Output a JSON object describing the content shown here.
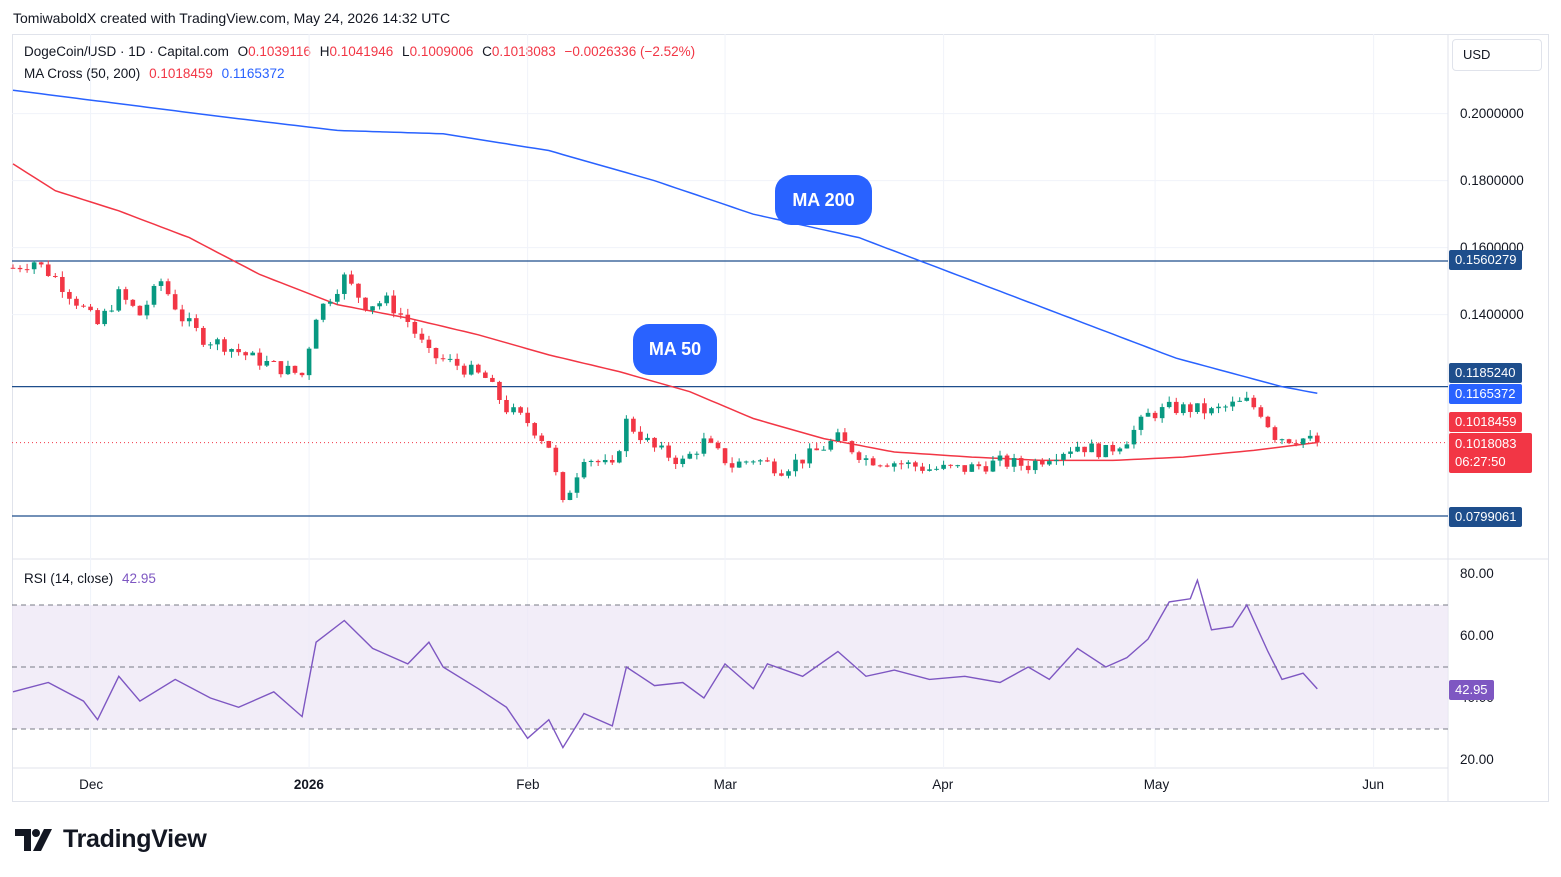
{
  "header": {
    "credit": "TomiwaboldX created with TradingView.com, May 24, 2026 14:32 UTC"
  },
  "legend": {
    "symbol": "DogeCoin/USD · 1D · Capital.com",
    "o_label": "O",
    "o": "0.1039116",
    "h_label": "H",
    "h": "0.1041946",
    "l_label": "L",
    "l": "0.1009006",
    "c_label": "C",
    "c": "0.1018083",
    "change": "−0.0026336 (−2.52%)",
    "ma_label": "MA Cross (50, 200)",
    "ma50": "0.1018459",
    "ma200": "0.1165372",
    "rsi_label": "RSI (14, close)",
    "rsi": "42.95"
  },
  "currency_button": "USD",
  "price_axis": [
    "0.2000000",
    "0.1800000",
    "0.1600000",
    "0.1400000"
  ],
  "badges": {
    "level_top": "0.1560279",
    "level_mid": "0.1185240",
    "ma200": "0.1165372",
    "ma50": "0.1018459",
    "last": "0.1018083",
    "countdown": "06:27:50",
    "level_low": "0.0799061",
    "rsi": "42.95"
  },
  "callouts": {
    "ma200": "MA 200",
    "ma50": "MA 50"
  },
  "rsi_axis": [
    "80.00",
    "60.00",
    "40.00",
    "20.00"
  ],
  "time_axis": [
    {
      "label": "Dec",
      "bold": false
    },
    {
      "label": "2026",
      "bold": true
    },
    {
      "label": "Feb",
      "bold": false
    },
    {
      "label": "Mar",
      "bold": false
    },
    {
      "label": "Apr",
      "bold": false
    },
    {
      "label": "May",
      "bold": false
    },
    {
      "label": "Jun",
      "bold": false
    }
  ],
  "brand": "TradingView",
  "colors": {
    "up": "#089981",
    "down": "#f23645",
    "ma50": "#f23645",
    "ma200": "#2962ff",
    "rsi": "#7e57c2",
    "level": "#1e4e8c",
    "rsi_band": "#ede7f6"
  },
  "chart_data": {
    "type": "candlestick",
    "title": "DogeCoin/USD · 1D · Capital.com",
    "ylim": [
      0.075,
      0.215
    ],
    "horizontal_levels": [
      0.1560279,
      0.118524,
      0.0799061
    ],
    "time_range": [
      "2025-11-20",
      "2026-05-24"
    ],
    "series": [
      {
        "name": "DogeCoin/USD",
        "anchor_closes": [
          [
            "2025-11-20",
            0.154
          ],
          [
            "2025-11-23",
            0.156
          ],
          [
            "2025-11-26",
            0.151
          ],
          [
            "2025-11-29",
            0.144
          ],
          [
            "2025-12-02",
            0.137
          ],
          [
            "2025-12-05",
            0.146
          ],
          [
            "2025-12-08",
            0.14
          ],
          [
            "2025-12-11",
            0.15
          ],
          [
            "2025-12-14",
            0.139
          ],
          [
            "2025-12-17",
            0.133
          ],
          [
            "2025-12-20",
            0.131
          ],
          [
            "2025-12-24",
            0.127
          ],
          [
            "2025-12-28",
            0.124
          ],
          [
            "2025-12-31",
            0.122
          ],
          [
            "2026-01-02",
            0.14
          ],
          [
            "2026-01-06",
            0.151
          ],
          [
            "2026-01-09",
            0.143
          ],
          [
            "2026-01-12",
            0.144
          ],
          [
            "2026-01-15",
            0.138
          ],
          [
            "2026-01-18",
            0.128
          ],
          [
            "2026-01-22",
            0.125
          ],
          [
            "2026-01-26",
            0.121
          ],
          [
            "2026-01-29",
            0.112
          ],
          [
            "2026-02-01",
            0.108
          ],
          [
            "2026-02-04",
            0.101
          ],
          [
            "2026-02-06",
            0.083
          ],
          [
            "2026-02-09",
            0.098
          ],
          [
            "2026-02-13",
            0.094
          ],
          [
            "2026-02-15",
            0.108
          ],
          [
            "2026-02-19",
            0.1
          ],
          [
            "2026-02-23",
            0.096
          ],
          [
            "2026-02-26",
            0.102
          ],
          [
            "2026-03-02",
            0.095
          ],
          [
            "2026-03-05",
            0.097
          ],
          [
            "2026-03-09",
            0.094
          ],
          [
            "2026-03-13",
            0.098
          ],
          [
            "2026-03-17",
            0.103
          ],
          [
            "2026-03-21",
            0.097
          ],
          [
            "2026-03-25",
            0.096
          ],
          [
            "2026-03-30",
            0.094
          ],
          [
            "2026-04-04",
            0.094
          ],
          [
            "2026-04-09",
            0.096
          ],
          [
            "2026-04-13",
            0.095
          ],
          [
            "2026-04-16",
            0.098
          ],
          [
            "2026-04-20",
            0.101
          ],
          [
            "2026-04-24",
            0.099
          ],
          [
            "2026-04-27",
            0.103
          ],
          [
            "2026-04-30",
            0.11
          ],
          [
            "2026-05-03",
            0.112
          ],
          [
            "2026-05-06",
            0.112
          ],
          [
            "2026-05-09",
            0.111
          ],
          [
            "2026-05-12",
            0.113
          ],
          [
            "2026-05-14",
            0.114
          ],
          [
            "2026-05-16",
            0.111
          ],
          [
            "2026-05-18",
            0.104
          ],
          [
            "2026-05-20",
            0.103
          ],
          [
            "2026-05-22",
            0.103
          ],
          [
            "2026-05-24",
            0.1018083
          ]
        ]
      },
      {
        "name": "MA 50",
        "anchor_values": [
          [
            "2025-11-20",
            0.185
          ],
          [
            "2025-11-26",
            0.177
          ],
          [
            "2025-12-05",
            0.171
          ],
          [
            "2025-12-15",
            0.163
          ],
          [
            "2025-12-25",
            0.152
          ],
          [
            "2026-01-05",
            0.143
          ],
          [
            "2026-01-15",
            0.139
          ],
          [
            "2026-01-25",
            0.134
          ],
          [
            "2026-02-04",
            0.128
          ],
          [
            "2026-02-14",
            0.123
          ],
          [
            "2026-02-24",
            0.117
          ],
          [
            "2026-03-05",
            0.109
          ],
          [
            "2026-03-15",
            0.103
          ],
          [
            "2026-03-25",
            0.099
          ],
          [
            "2026-04-05",
            0.0975
          ],
          [
            "2026-04-15",
            0.0965
          ],
          [
            "2026-04-25",
            0.0965
          ],
          [
            "2026-05-05",
            0.0975
          ],
          [
            "2026-05-15",
            0.0995
          ],
          [
            "2026-05-24",
            0.1018459
          ]
        ]
      },
      {
        "name": "MA 200",
        "anchor_values": [
          [
            "2025-11-20",
            0.207
          ],
          [
            "2025-12-05",
            0.203
          ],
          [
            "2025-12-20",
            0.199
          ],
          [
            "2026-01-05",
            0.195
          ],
          [
            "2026-01-20",
            0.194
          ],
          [
            "2026-02-04",
            0.189
          ],
          [
            "2026-02-19",
            0.18
          ],
          [
            "2026-03-05",
            0.17
          ],
          [
            "2026-03-20",
            0.163
          ],
          [
            "2026-04-04",
            0.151
          ],
          [
            "2026-04-19",
            0.139
          ],
          [
            "2026-05-04",
            0.127
          ],
          [
            "2026-05-19",
            0.1185
          ],
          [
            "2026-05-24",
            0.1165372
          ]
        ]
      }
    ],
    "rsi": {
      "name": "RSI (14, close)",
      "ylim": [
        18,
        82
      ],
      "bands": [
        30,
        50,
        70
      ],
      "anchor_values": [
        [
          "2025-11-20",
          42
        ],
        [
          "2025-11-25",
          45
        ],
        [
          "2025-11-30",
          39
        ],
        [
          "2025-12-02",
          33
        ],
        [
          "2025-12-05",
          47
        ],
        [
          "2025-12-08",
          39
        ],
        [
          "2025-12-13",
          46
        ],
        [
          "2025-12-18",
          40
        ],
        [
          "2025-12-22",
          37
        ],
        [
          "2025-12-27",
          42
        ],
        [
          "2025-12-31",
          34
        ],
        [
          "2026-01-02",
          58
        ],
        [
          "2026-01-06",
          65
        ],
        [
          "2026-01-10",
          56
        ],
        [
          "2026-01-15",
          51
        ],
        [
          "2026-01-18",
          58
        ],
        [
          "2026-01-20",
          50
        ],
        [
          "2026-01-25",
          43
        ],
        [
          "2026-01-29",
          37
        ],
        [
          "2026-02-01",
          27
        ],
        [
          "2026-02-04",
          33
        ],
        [
          "2026-02-06",
          24
        ],
        [
          "2026-02-09",
          35
        ],
        [
          "2026-02-13",
          31
        ],
        [
          "2026-02-15",
          50
        ],
        [
          "2026-02-19",
          44
        ],
        [
          "2026-02-23",
          45
        ],
        [
          "2026-02-26",
          40
        ],
        [
          "2026-03-01",
          51
        ],
        [
          "2026-03-05",
          43
        ],
        [
          "2026-03-07",
          51
        ],
        [
          "2026-03-12",
          47
        ],
        [
          "2026-03-17",
          55
        ],
        [
          "2026-03-21",
          47
        ],
        [
          "2026-03-25",
          49
        ],
        [
          "2026-03-30",
          46
        ],
        [
          "2026-04-04",
          47
        ],
        [
          "2026-04-09",
          45
        ],
        [
          "2026-04-13",
          50
        ],
        [
          "2026-04-16",
          46
        ],
        [
          "2026-04-20",
          56
        ],
        [
          "2026-04-24",
          50
        ],
        [
          "2026-04-27",
          53
        ],
        [
          "2026-04-30",
          59
        ],
        [
          "2026-05-03",
          71
        ],
        [
          "2026-05-06",
          72
        ],
        [
          "2026-05-07",
          78
        ],
        [
          "2026-05-09",
          62
        ],
        [
          "2026-05-12",
          63
        ],
        [
          "2026-05-14",
          70
        ],
        [
          "2026-05-17",
          55
        ],
        [
          "2026-05-19",
          46
        ],
        [
          "2026-05-22",
          48
        ],
        [
          "2026-05-24",
          42.95
        ]
      ]
    }
  }
}
